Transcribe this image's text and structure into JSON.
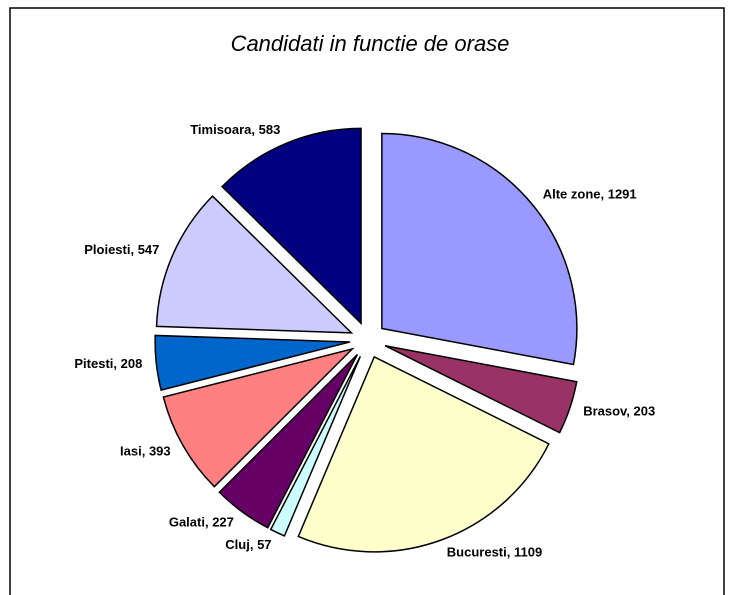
{
  "chart_data": {
    "type": "pie",
    "title": "Candidati in functie de orase",
    "categories": [
      "Alte zone",
      "Brasov",
      "Bucuresti",
      "Cluj",
      "Galati",
      "Iasi",
      "Pitesti",
      "Ploiesti",
      "Timisoara"
    ],
    "values": [
      1291,
      203,
      1109,
      57,
      227,
      393,
      208,
      547,
      583
    ],
    "value_labels": [
      "Alte zone, 1291",
      "Brasov, 203",
      "Bucuresti, 1109",
      "Cluj, 57",
      "Galati, 227",
      "Iasi, 393",
      "Pitesti, 208",
      "Ploiesti, 547",
      "Timisoara, 583"
    ],
    "colors": [
      "#9999ff",
      "#993366",
      "#ffffcc",
      "#ccffff",
      "#660066",
      "#ff8080",
      "#0066cc",
      "#ccccff",
      "#000080"
    ]
  }
}
